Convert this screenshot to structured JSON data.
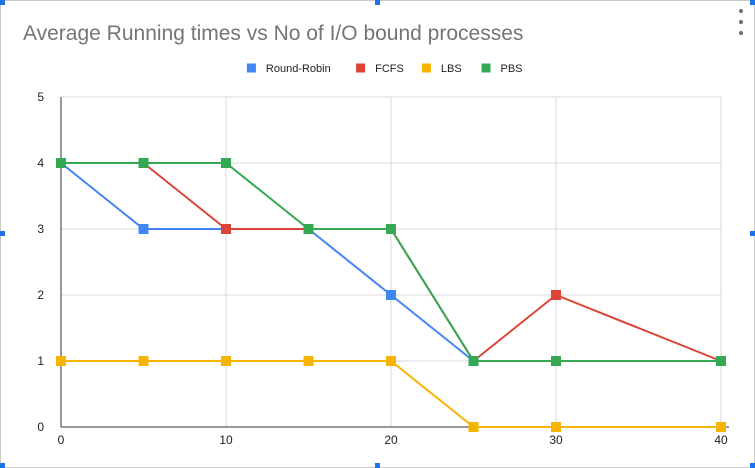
{
  "chart_data": {
    "type": "line",
    "title": "Average Running times vs No of I/O bound processes",
    "xlabel": "",
    "ylabel": "",
    "x": [
      0,
      5,
      10,
      15,
      20,
      25,
      30,
      40
    ],
    "xticks": [
      0,
      10,
      20,
      30,
      40
    ],
    "yticks": [
      0,
      1,
      2,
      3,
      4,
      5
    ],
    "xlim": [
      0,
      40
    ],
    "ylim": [
      0,
      5
    ],
    "grid": true,
    "legend_position": "top",
    "series": [
      {
        "name": "Round-Robin",
        "color": "#4285f4",
        "values": [
          4,
          3,
          3,
          3,
          2,
          1,
          1,
          1
        ]
      },
      {
        "name": "FCFS",
        "color": "#db4437",
        "values": [
          4,
          4,
          3,
          3,
          3,
          1,
          2,
          1
        ]
      },
      {
        "name": "LBS",
        "color": "#f4b400",
        "values": [
          1,
          1,
          1,
          1,
          1,
          0,
          0,
          0
        ]
      },
      {
        "name": "PBS",
        "color": "#34a853",
        "values": [
          4,
          4,
          4,
          3,
          3,
          1,
          1,
          1
        ]
      }
    ]
  }
}
